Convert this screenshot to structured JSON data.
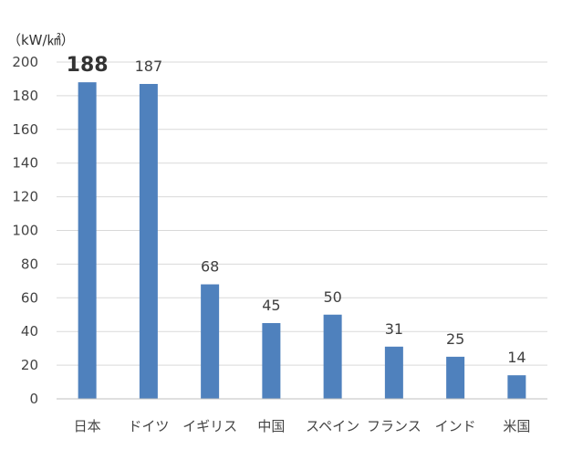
{
  "chart_data": {
    "type": "bar",
    "unit_label": "（kW/㎢）",
    "categories": [
      "日本",
      "ドイツ",
      "イギリス",
      "中国",
      "スペイン",
      "フランス",
      "インド",
      "米国"
    ],
    "values": [
      188,
      187,
      68,
      45,
      50,
      31,
      25,
      14
    ],
    "ylim": [
      0,
      200
    ],
    "yticks": [
      0,
      20,
      40,
      60,
      80,
      100,
      120,
      140,
      160,
      180,
      200
    ],
    "grid": true,
    "legend": "none",
    "colors": {
      "bar": "#4f81bd"
    },
    "highlight_index": 0
  }
}
